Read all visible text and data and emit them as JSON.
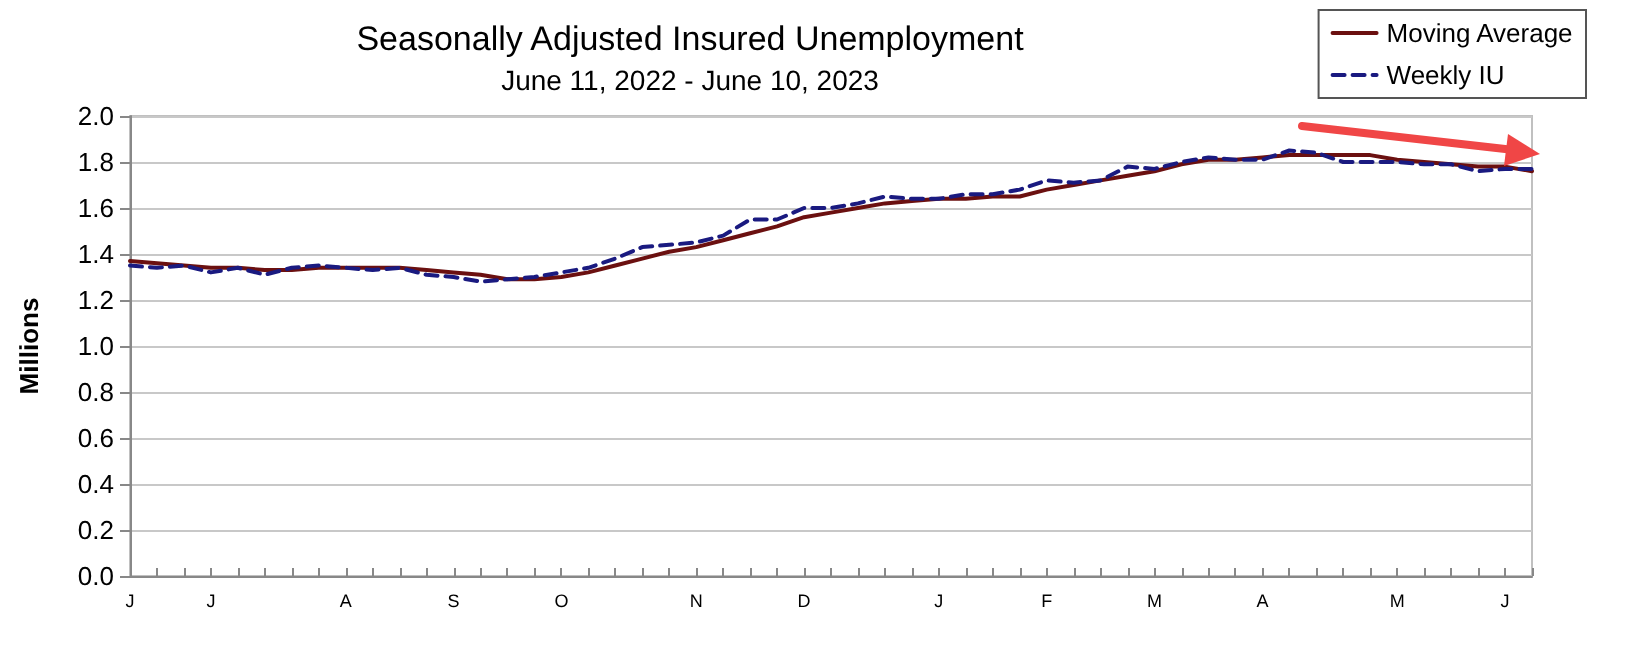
{
  "chart_data": {
    "type": "line",
    "title": "Seasonally Adjusted Insured Unemployment",
    "subtitle": "June 11, 2022 - June 10, 2023",
    "ylabel": "Millions",
    "categories": [
      "J",
      null,
      null,
      "J",
      null,
      null,
      null,
      null,
      "A",
      null,
      null,
      null,
      "S",
      null,
      null,
      null,
      "O",
      null,
      null,
      null,
      null,
      "N",
      null,
      null,
      null,
      "D",
      null,
      null,
      null,
      null,
      "J",
      null,
      null,
      null,
      "F",
      null,
      null,
      null,
      "M",
      null,
      null,
      null,
      "A",
      null,
      null,
      null,
      null,
      "M",
      null,
      null,
      null,
      "J",
      null
    ],
    "series": [
      {
        "name": "Moving Average",
        "color": "#6b1010",
        "line_style": "solid",
        "values": [
          1.37,
          1.36,
          1.35,
          1.34,
          1.34,
          1.33,
          1.33,
          1.34,
          1.34,
          1.34,
          1.34,
          1.33,
          1.32,
          1.31,
          1.29,
          1.29,
          1.3,
          1.32,
          1.35,
          1.38,
          1.41,
          1.43,
          1.46,
          1.49,
          1.52,
          1.56,
          1.58,
          1.6,
          1.62,
          1.63,
          1.64,
          1.64,
          1.65,
          1.65,
          1.68,
          1.7,
          1.72,
          1.74,
          1.76,
          1.79,
          1.81,
          1.81,
          1.82,
          1.83,
          1.83,
          1.83,
          1.83,
          1.81,
          1.8,
          1.79,
          1.78,
          1.78,
          1.76
        ]
      },
      {
        "name": "Weekly IU",
        "color": "#1a1a80",
        "line_style": "dashed",
        "values": [
          1.35,
          1.34,
          1.35,
          1.32,
          1.34,
          1.31,
          1.34,
          1.35,
          1.34,
          1.33,
          1.34,
          1.31,
          1.3,
          1.28,
          1.29,
          1.3,
          1.32,
          1.34,
          1.38,
          1.43,
          1.44,
          1.45,
          1.48,
          1.55,
          1.55,
          1.6,
          1.6,
          1.62,
          1.65,
          1.64,
          1.64,
          1.66,
          1.66,
          1.68,
          1.72,
          1.71,
          1.72,
          1.78,
          1.77,
          1.8,
          1.82,
          1.81,
          1.81,
          1.85,
          1.84,
          1.8,
          1.8,
          1.8,
          1.79,
          1.79,
          1.76,
          1.77,
          1.77
        ]
      }
    ],
    "ylim": [
      0,
      2
    ],
    "yticks": [
      {
        "value": 0,
        "label": "0.0"
      },
      0.2,
      0.4,
      0.6,
      0.8,
      {
        "value": 1,
        "label": "1.0"
      },
      1.2,
      1.4,
      1.6,
      1.8,
      {
        "value": 2,
        "label": "2.0"
      }
    ],
    "grid": "y",
    "legend": "top right",
    "marker": "none"
  }
}
